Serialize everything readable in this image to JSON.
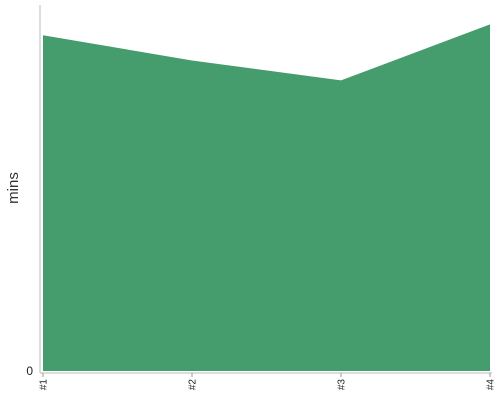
{
  "chart_data": {
    "type": "area",
    "categories": [
      "#1",
      "#2",
      "#3",
      "#4"
    ],
    "series": [
      {
        "values": [
          93,
          86,
          80.5,
          96
        ]
      }
    ],
    "ylabel": "mins",
    "xlabel": "",
    "ylim": [
      0,
      100
    ],
    "y_tick_labels": [
      "0"
    ],
    "grid": false,
    "legend": "none",
    "colors": {
      "area": "#459c6d",
      "axis": "#bbbbbb"
    }
  }
}
